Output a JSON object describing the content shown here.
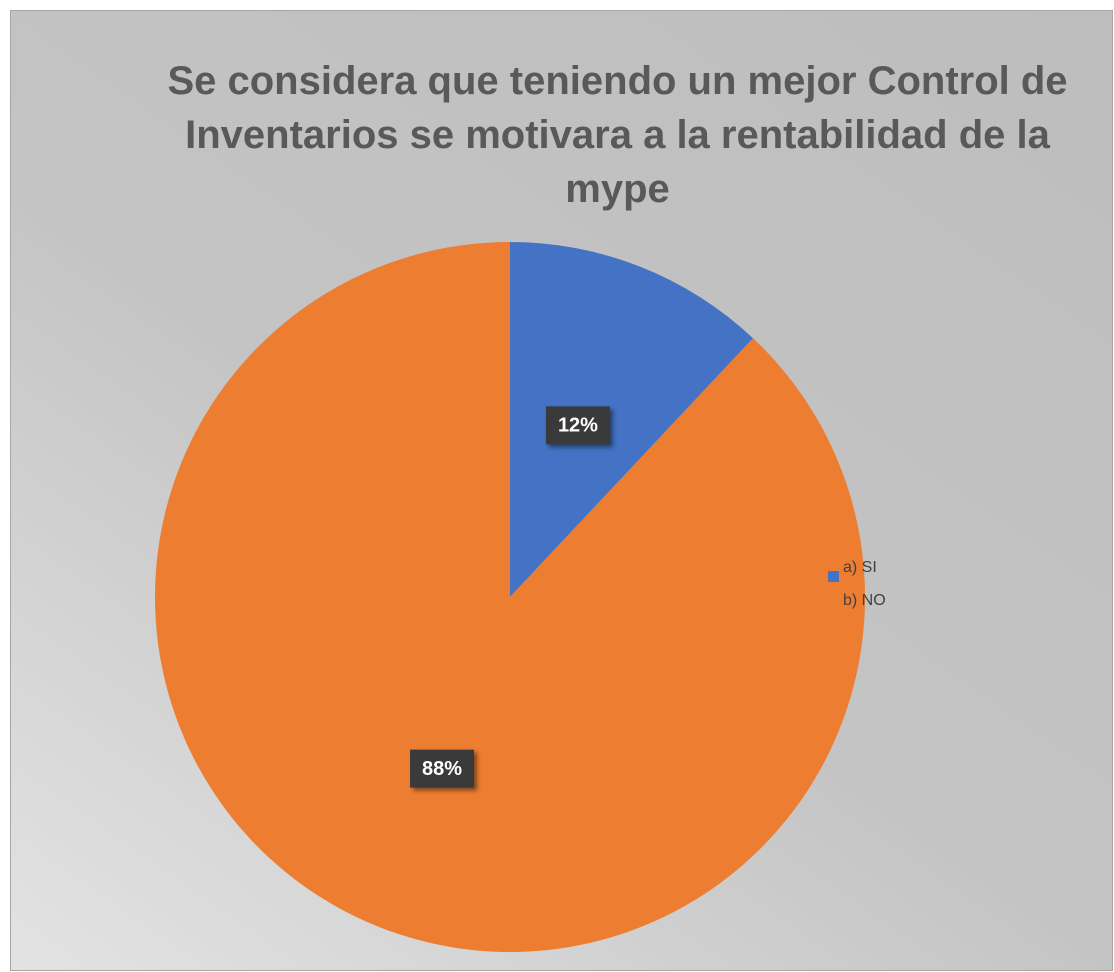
{
  "chart_data": {
    "type": "pie",
    "title": "Se considera que teniendo un mejor Control de Inventarios se motivara a la rentabilidad de la mype",
    "categories": [
      "a) SI",
      "b) NO"
    ],
    "values": [
      12,
      88
    ],
    "value_labels": [
      "12%",
      "88%"
    ],
    "colors": [
      "#4472c4",
      "#ed7d31"
    ],
    "legend": "right"
  }
}
